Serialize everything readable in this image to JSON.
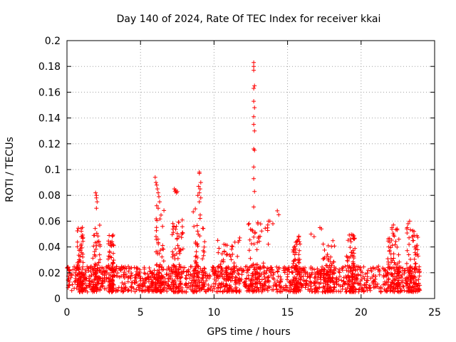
{
  "chart_data": {
    "type": "scatter",
    "title": "Day 140 of 2024, Rate Of TEC Index for receiver kkai",
    "xlabel": "GPS time / hours",
    "ylabel": "ROTI / TECUs",
    "xlim": [
      0,
      25
    ],
    "ylim": [
      0,
      0.2
    ],
    "x_ticks": [
      0,
      5,
      10,
      15,
      20,
      25
    ],
    "x_tick_labels": [
      "0",
      "5",
      "10",
      "15",
      "20",
      "25"
    ],
    "y_ticks": [
      0,
      0.02,
      0.04,
      0.06,
      0.08,
      0.1,
      0.12,
      0.14,
      0.16,
      0.18,
      0.2
    ],
    "y_tick_labels": [
      "0",
      "0.02",
      "0.04",
      "0.06",
      "0.08",
      "0.1",
      "0.12",
      "0.14",
      "0.16",
      "0.18",
      "0.2"
    ],
    "grid": true,
    "marker": "+",
    "marker_color": "#ff0000",
    "x_range_of_data": [
      0,
      24
    ],
    "baseline_band": [
      0.005,
      0.025
    ],
    "highlights": [
      {
        "x": [
          12.7,
          12.7,
          12.7,
          12.75,
          12.7,
          12.7,
          12.75,
          12.7,
          12.7,
          12.75,
          12.7,
          12.75,
          12.7,
          12.7,
          12.75,
          12.7
        ],
        "y": [
          0.183,
          0.18,
          0.177,
          0.165,
          0.163,
          0.153,
          0.148,
          0.141,
          0.135,
          0.13,
          0.116,
          0.115,
          0.102,
          0.093,
          0.083,
          0.071
        ]
      },
      {
        "x": [
          9.0,
          9.0,
          9.1,
          8.95,
          9.05,
          9.0,
          8.9,
          9.1,
          9.0
        ],
        "y": [
          0.098,
          0.097,
          0.09,
          0.087,
          0.085,
          0.082,
          0.08,
          0.078,
          0.075
        ]
      },
      {
        "x": [
          6.0,
          6.05,
          6.1,
          6.15,
          6.2,
          6.25,
          6.3,
          6.1,
          6.2
        ],
        "y": [
          0.094,
          0.09,
          0.088,
          0.085,
          0.082,
          0.079,
          0.075,
          0.072,
          0.07
        ]
      },
      {
        "x": [
          1.95,
          2.0,
          2.0,
          2.05,
          2.0
        ],
        "y": [
          0.082,
          0.08,
          0.078,
          0.075,
          0.07
        ]
      },
      {
        "x": [
          7.3,
          7.4,
          7.5,
          7.35,
          7.45
        ],
        "y": [
          0.085,
          0.084,
          0.083,
          0.083,
          0.082
        ]
      },
      {
        "x": [
          14.3,
          14.4,
          13.8,
          13.7,
          14.0
        ],
        "y": [
          0.068,
          0.065,
          0.06,
          0.06,
          0.058
        ]
      },
      {
        "x": [
          16.6,
          16.8,
          17.2,
          17.3
        ],
        "y": [
          0.05,
          0.048,
          0.055,
          0.054
        ]
      },
      {
        "x": [
          22.1,
          22.2,
          23.2,
          23.3,
          23.6
        ],
        "y": [
          0.055,
          0.057,
          0.058,
          0.06,
          0.052
        ]
      }
    ],
    "bursts": [
      {
        "x_center": 0.9,
        "x_width": 0.4,
        "y_max": 0.06
      },
      {
        "x_center": 2.0,
        "x_width": 0.5,
        "y_max": 0.058
      },
      {
        "x_center": 3.0,
        "x_width": 0.4,
        "y_max": 0.05
      },
      {
        "x_center": 6.3,
        "x_width": 0.6,
        "y_max": 0.07
      },
      {
        "x_center": 7.5,
        "x_width": 0.8,
        "y_max": 0.065
      },
      {
        "x_center": 9.0,
        "x_width": 0.9,
        "y_max": 0.07
      },
      {
        "x_center": 11.0,
        "x_width": 1.6,
        "y_max": 0.048
      },
      {
        "x_center": 13.0,
        "x_width": 1.4,
        "y_max": 0.06
      },
      {
        "x_center": 15.6,
        "x_width": 0.5,
        "y_max": 0.05
      },
      {
        "x_center": 17.8,
        "x_width": 0.8,
        "y_max": 0.045
      },
      {
        "x_center": 19.3,
        "x_width": 0.6,
        "y_max": 0.05
      },
      {
        "x_center": 22.2,
        "x_width": 0.8,
        "y_max": 0.055
      },
      {
        "x_center": 23.5,
        "x_width": 0.8,
        "y_max": 0.055
      }
    ]
  }
}
